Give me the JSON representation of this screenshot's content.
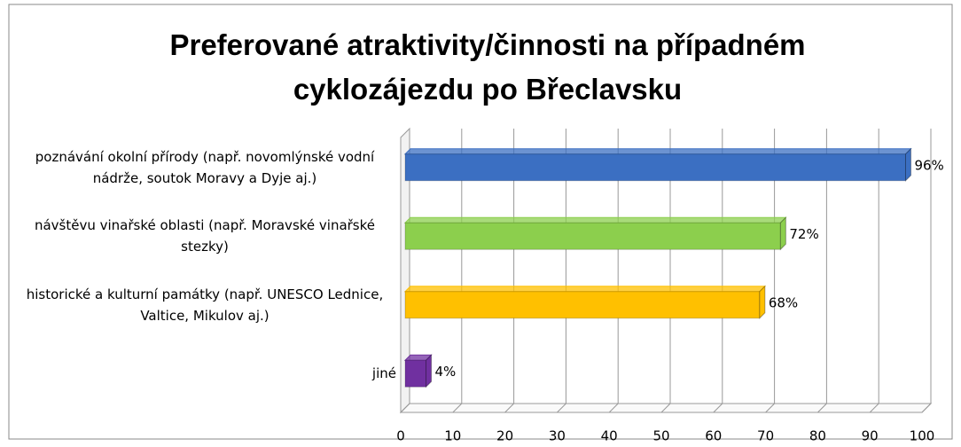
{
  "chart_data": {
    "type": "bar3d-horizontal",
    "title": "Preferované atraktivity/činnosti na případném cyklozájezdu po Břeclavsku",
    "categories": [
      "poznávání okolní přírody (např. novomlýnské vodní nádrže, soutok Moravy a Dyje aj.)",
      "návštěvu vinařské oblasti (např. Moravské vinařské stezky)",
      "historické a kulturní památky (např. UNESCO Lednice, Valtice, Mikulov aj.)",
      "jiné"
    ],
    "values": [
      96,
      72,
      68,
      4
    ],
    "value_labels": [
      "96%",
      "72%",
      "68%",
      "4%"
    ],
    "colors": [
      "#3b6fc2",
      "#8ccf4d",
      "#ffc000",
      "#7030a0"
    ],
    "xlim": [
      0,
      100
    ],
    "xticks": [
      0,
      10,
      20,
      30,
      40,
      50,
      60,
      70,
      80,
      90,
      100
    ],
    "grid": true
  }
}
